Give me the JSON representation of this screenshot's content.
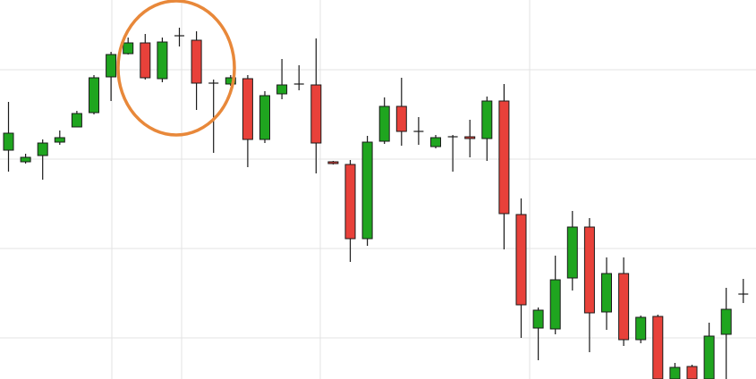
{
  "chart_data": {
    "type": "candlestick",
    "title": "",
    "xlabel": "",
    "ylabel": "",
    "grid": true,
    "ylim": [
      0,
      424
    ],
    "colors": {
      "up": "#1fa51f",
      "down": "#e8413a",
      "wick": "#1a1a1a",
      "grid": "#e3e3e3",
      "highlight": "#e8883a"
    },
    "candles": [
      {
        "x": 1,
        "open": 256,
        "close": 275,
        "high": 310,
        "low": 232
      },
      {
        "x": 2,
        "open": 243,
        "close": 248,
        "high": 252,
        "low": 241
      },
      {
        "x": 3,
        "open": 250,
        "close": 264,
        "high": 268,
        "low": 223
      },
      {
        "x": 4,
        "open": 265,
        "close": 270,
        "high": 278,
        "low": 262
      },
      {
        "x": 5,
        "open": 282,
        "close": 297,
        "high": 300,
        "low": 282
      },
      {
        "x": 6,
        "open": 298,
        "close": 337,
        "high": 340,
        "low": 296
      },
      {
        "x": 7,
        "open": 338,
        "close": 363,
        "high": 366,
        "low": 311
      },
      {
        "x": 8,
        "open": 364,
        "close": 376,
        "high": 382,
        "low": 363
      },
      {
        "x": 9,
        "open": 376,
        "close": 337,
        "high": 386,
        "low": 335
      },
      {
        "x": 10,
        "open": 336,
        "close": 377,
        "high": 382,
        "low": 332
      },
      {
        "x": 11,
        "open": 384,
        "close": 384,
        "high": 393,
        "low": 372
      },
      {
        "x": 12,
        "open": 379,
        "close": 331,
        "high": 389,
        "low": 301
      },
      {
        "x": 13,
        "open": 331,
        "close": 331,
        "high": 335,
        "low": 253
      },
      {
        "x": 14,
        "open": 330,
        "close": 337,
        "high": 340,
        "low": 328
      },
      {
        "x": 15,
        "open": 336,
        "close": 268,
        "high": 340,
        "low": 237
      },
      {
        "x": 16,
        "open": 268,
        "close": 317,
        "high": 322,
        "low": 264
      },
      {
        "x": 17,
        "open": 319,
        "close": 329,
        "high": 358,
        "low": 313
      },
      {
        "x": 18,
        "open": 330,
        "close": 330,
        "high": 351,
        "low": 323
      },
      {
        "x": 19,
        "open": 329,
        "close": 264,
        "high": 381,
        "low": 230
      },
      {
        "x": 20,
        "open": 243,
        "close": 241,
        "high": 244,
        "low": 240
      },
      {
        "x": 21,
        "open": 240,
        "close": 157,
        "high": 245,
        "low": 131
      },
      {
        "x": 22,
        "open": 157,
        "close": 265,
        "high": 272,
        "low": 149
      },
      {
        "x": 23,
        "open": 266,
        "close": 305,
        "high": 315,
        "low": 263
      },
      {
        "x": 24,
        "open": 305,
        "close": 277,
        "high": 337,
        "low": 261
      },
      {
        "x": 25,
        "open": 277,
        "close": 277,
        "high": 293,
        "low": 262
      },
      {
        "x": 26,
        "open": 260,
        "close": 270,
        "high": 273,
        "low": 258
      },
      {
        "x": 27,
        "open": 271,
        "close": 271,
        "high": 273,
        "low": 232
      },
      {
        "x": 28,
        "open": 271,
        "close": 269,
        "high": 290,
        "low": 248
      },
      {
        "x": 29,
        "open": 269,
        "close": 311,
        "high": 316,
        "low": 244
      },
      {
        "x": 30,
        "open": 311,
        "close": 185,
        "high": 330,
        "low": 145
      },
      {
        "x": 31,
        "open": 184,
        "close": 83,
        "high": 202,
        "low": 46
      },
      {
        "x": 32,
        "open": 57,
        "close": 77,
        "high": 80,
        "low": 21
      },
      {
        "x": 33,
        "open": 56,
        "close": 111,
        "high": 138,
        "low": 50
      },
      {
        "x": 34,
        "open": 113,
        "close": 170,
        "high": 188,
        "low": 99
      },
      {
        "x": 35,
        "open": 170,
        "close": 74,
        "high": 180,
        "low": 30
      },
      {
        "x": 36,
        "open": 75,
        "close": 118,
        "high": 136,
        "low": 55
      },
      {
        "x": 37,
        "open": 118,
        "close": 44,
        "high": 136,
        "low": 37
      },
      {
        "x": 38,
        "open": 44,
        "close": 69,
        "high": 71,
        "low": 40
      },
      {
        "x": 39,
        "open": 70,
        "close": 0,
        "high": 72,
        "low": 0
      },
      {
        "x": 40,
        "open": 0,
        "close": 13,
        "high": 18,
        "low": 0
      },
      {
        "x": 41,
        "open": 14,
        "close": 0,
        "high": 16,
        "low": 0
      },
      {
        "x": 42,
        "open": 0,
        "close": 48,
        "high": 63,
        "low": 0
      },
      {
        "x": 43,
        "open": 50,
        "close": 78,
        "high": 102,
        "low": 0
      },
      {
        "x": 44,
        "open": 95,
        "close": 95,
        "high": 112,
        "low": 85
      }
    ]
  }
}
